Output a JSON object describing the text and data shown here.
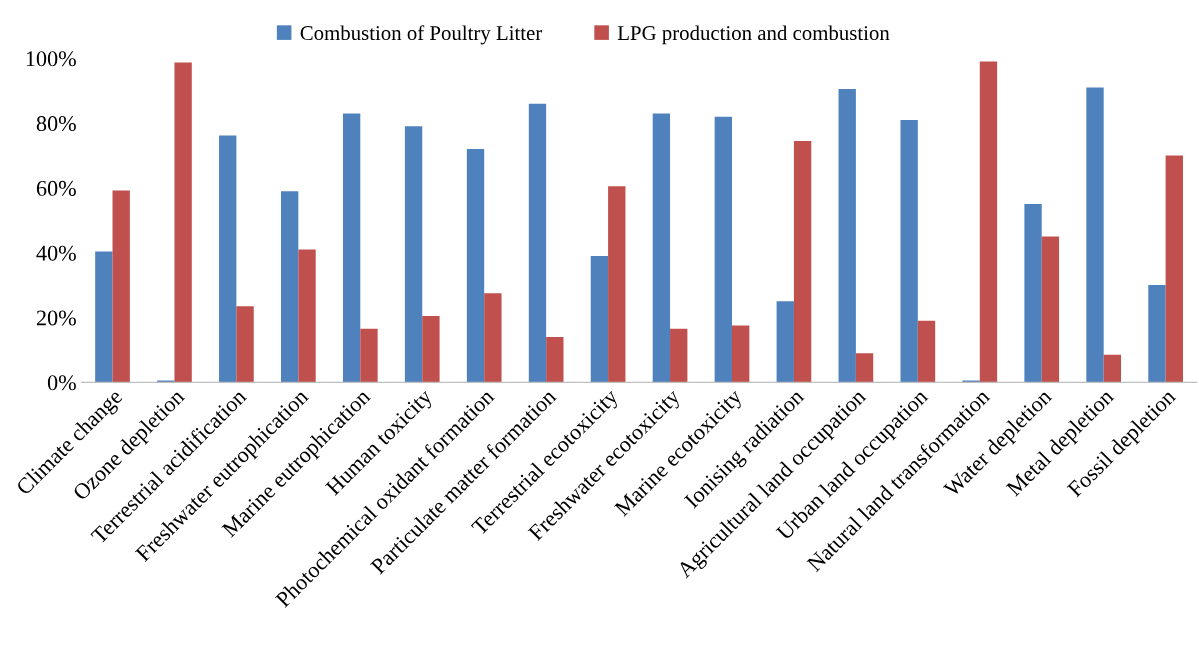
{
  "chart_data": {
    "type": "bar",
    "categories": [
      "Climate change",
      "Ozone depletion",
      "Terrestrial acidification",
      "Freshwater eutrophication",
      "Marine eutrophication",
      "Human toxicity",
      "Photochemical oxidant formation",
      "Particulate matter formation",
      "Terrestrial ecotoxicity",
      "Freshwater ecotoxicity",
      "Marine ecotoxicity",
      "Ionising radiation",
      "Agricultural land occupation",
      "Urban land occupation",
      "Natural land transformation",
      "Water depletion",
      "Metal depletion",
      "Fossil depletion"
    ],
    "series": [
      {
        "name": "Combustion of Poultry Litter",
        "color": "#4f81bd",
        "values": [
          40.4,
          0.6,
          76.2,
          59,
          83,
          79,
          72,
          86,
          39,
          83,
          82,
          25,
          90.5,
          81,
          0.6,
          55,
          91,
          30
        ]
      },
      {
        "name": "LPG production and combustion",
        "color": "#c0504d",
        "values": [
          59.2,
          98.7,
          23.5,
          41,
          16.5,
          20.5,
          27.5,
          14,
          60.5,
          16.5,
          17.5,
          74.5,
          9,
          19,
          99,
          45,
          8.5,
          70
        ]
      }
    ],
    "ylim": [
      0,
      100
    ],
    "yticks": [
      {
        "value": 0,
        "label": "0%"
      },
      {
        "value": 20,
        "label": "20%"
      },
      {
        "value": 40,
        "label": "40%"
      },
      {
        "value": 60,
        "label": "60%"
      },
      {
        "value": 80,
        "label": "80%"
      },
      {
        "value": 100,
        "label": "100%"
      }
    ],
    "grid": false,
    "legend": "top"
  }
}
